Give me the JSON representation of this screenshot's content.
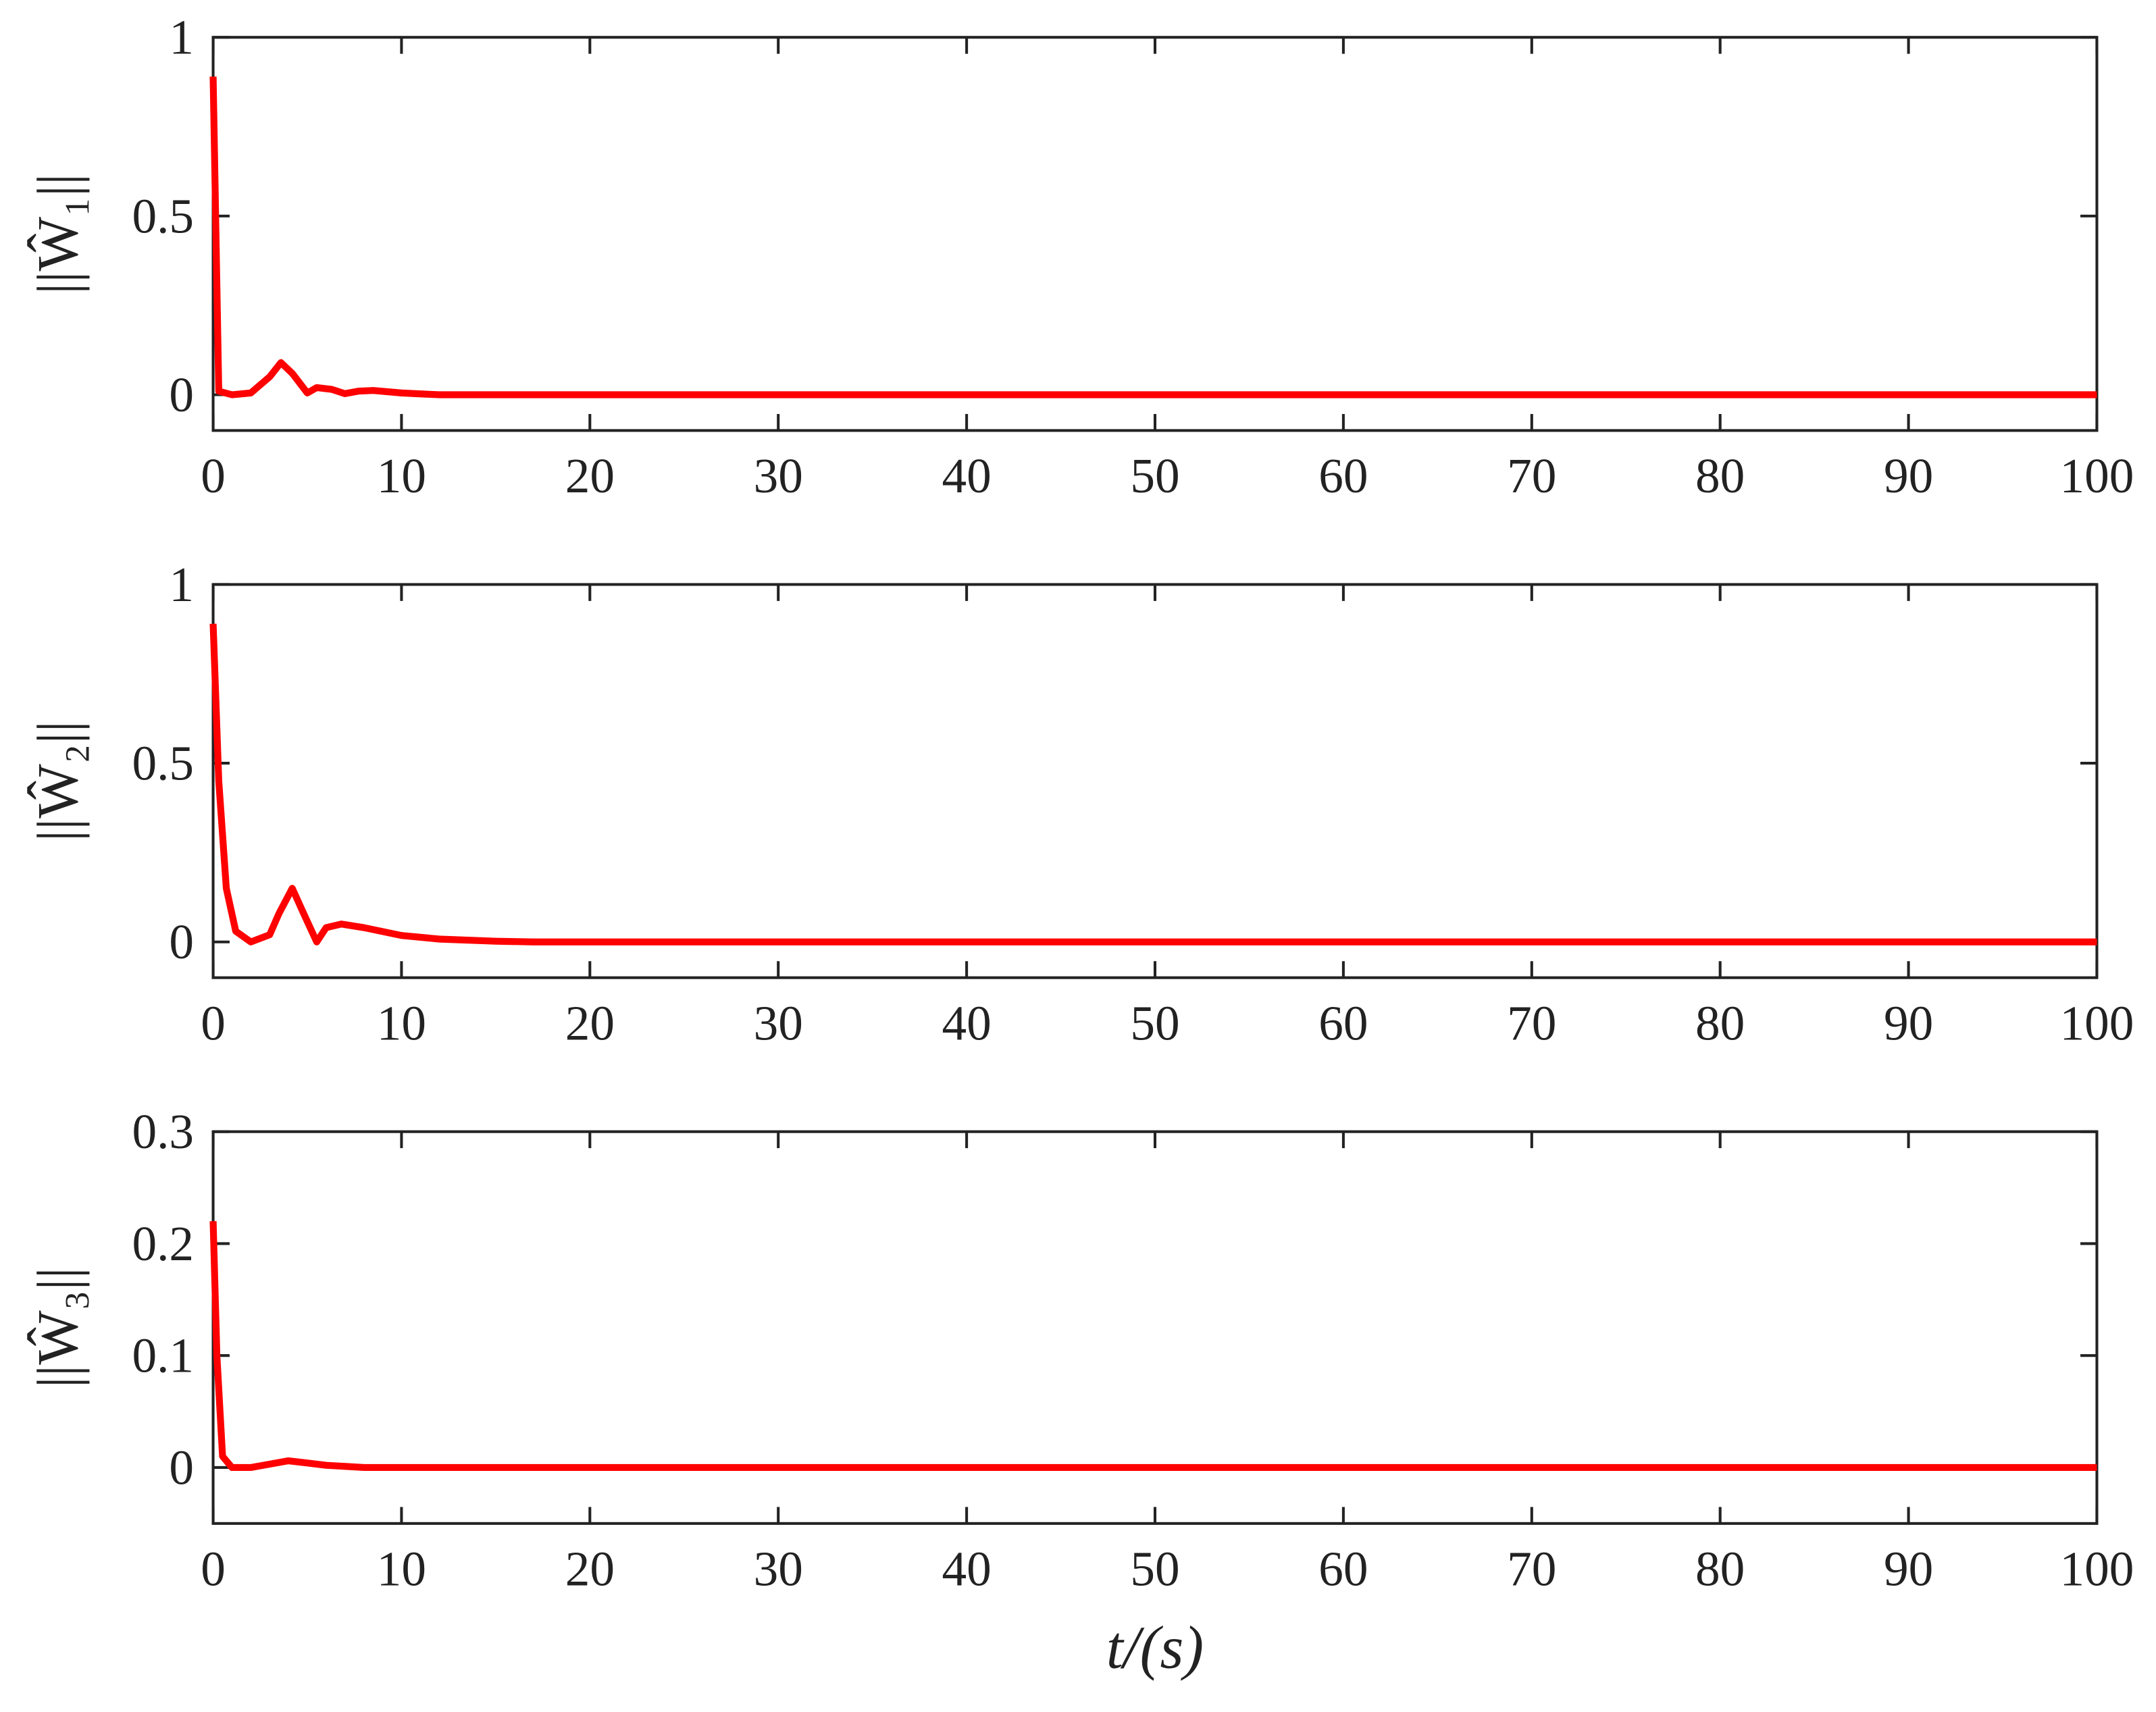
{
  "chart_data": [
    {
      "type": "line",
      "ylabel": "||Ŵ₁||",
      "x": [
        0,
        0.3,
        1,
        2,
        3,
        3.6,
        4.2,
        5,
        5.5,
        6.3,
        7,
        7.7,
        8.5,
        10,
        12,
        100
      ],
      "series": [
        {
          "color": "#ff0000",
          "values": [
            0.89,
            0.01,
            0,
            0.005,
            0.05,
            0.09,
            0.06,
            0.005,
            0.02,
            0.015,
            0.003,
            0.01,
            0.012,
            0.005,
            0,
            0
          ]
        }
      ],
      "xlim": [
        0,
        100
      ],
      "xticks": [
        0,
        10,
        20,
        30,
        40,
        50,
        60,
        70,
        80,
        90,
        100
      ],
      "ylim": [
        -0.1,
        1
      ],
      "yticks": [
        0,
        0.5,
        1
      ]
    },
    {
      "type": "line",
      "ylabel": "||Ŵ₂||",
      "x": [
        0,
        0.3,
        0.7,
        1.2,
        2,
        3,
        3.5,
        4.2,
        4.8,
        5.5,
        6,
        6.8,
        8,
        10,
        12,
        15,
        17,
        100
      ],
      "series": [
        {
          "color": "#ff0000",
          "values": [
            0.89,
            0.45,
            0.15,
            0.03,
            0,
            0.02,
            0.08,
            0.15,
            0.08,
            0,
            0.04,
            0.05,
            0.04,
            0.018,
            0.008,
            0.002,
            0,
            0
          ]
        }
      ],
      "xlim": [
        0,
        100
      ],
      "xticks": [
        0,
        10,
        20,
        30,
        40,
        50,
        60,
        70,
        80,
        90,
        100
      ],
      "ylim": [
        -0.1,
        1
      ],
      "yticks": [
        0,
        0.5,
        1
      ]
    },
    {
      "type": "line",
      "ylabel": "||Ŵ₃||",
      "xlabel": "t/(s)",
      "x": [
        0,
        0.2,
        0.5,
        1,
        2,
        3,
        4,
        5,
        6,
        8,
        100
      ],
      "series": [
        {
          "color": "#ff0000",
          "values": [
            0.22,
            0.1,
            0.01,
            0,
            0,
            0.003,
            0.006,
            0.004,
            0.002,
            0,
            0
          ]
        }
      ],
      "xlim": [
        0,
        100
      ],
      "xticks": [
        0,
        10,
        20,
        30,
        40,
        50,
        60,
        70,
        80,
        90,
        100
      ],
      "ylim": [
        -0.05,
        0.3
      ],
      "yticks": [
        0,
        0.1,
        0.2,
        0.3
      ]
    }
  ]
}
